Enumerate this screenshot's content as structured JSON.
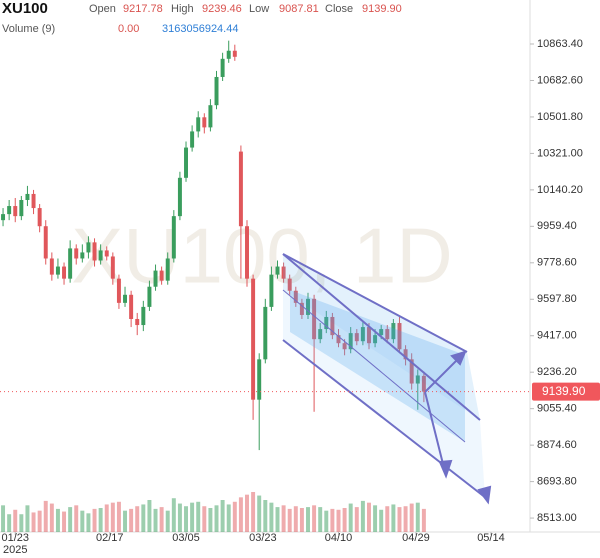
{
  "chart_data": {
    "type": "candlestick",
    "symbol": "XU100",
    "watermark": "XU100, 1D",
    "ohlc_legend": [
      {
        "name": "Open",
        "value": "9217.78"
      },
      {
        "name": "High",
        "value": "9239.46"
      },
      {
        "name": "Low",
        "value": "9087.81"
      },
      {
        "name": "Close",
        "value": "9139.90"
      }
    ],
    "volume_legend": {
      "name": "Volume (9)",
      "values": [
        "0.00",
        "3163056924.44"
      ]
    },
    "up_color": "#3a9d5d",
    "down_color": "#e0575b",
    "open": [
      9990,
      10020,
      10060,
      10010,
      10090,
      10120,
      10050,
      9960,
      9800,
      9720,
      9760,
      9700,
      9850,
      9800,
      9830,
      9880,
      9790,
      9840,
      9810,
      9700,
      9580,
      9620,
      9500,
      9470,
      9560,
      9660,
      9740,
      9690,
      9800,
      10010,
      10200,
      10350,
      10430,
      10500,
      10450,
      10560,
      10700,
      10790,
      10830,
      10330,
      9960,
      9700,
      9100,
      9300,
      9560,
      9720,
      9760,
      9700,
      9640,
      9580,
      9520,
      9600,
      9400,
      9450,
      9510,
      9420,
      9380,
      9350,
      9430,
      9390,
      9460,
      9380,
      9420,
      9450,
      9400,
      9480,
      9350,
      9300,
      9180,
      9217.78
    ],
    "high": [
      10050,
      10090,
      10100,
      10110,
      10160,
      10140,
      10070,
      9990,
      9830,
      9800,
      9780,
      9890,
      9870,
      9870,
      9910,
      9900,
      9870,
      9860,
      9830,
      9720,
      9660,
      9640,
      9530,
      9590,
      9690,
      9770,
      9760,
      9830,
      10040,
      10230,
      10380,
      10460,
      10530,
      10520,
      10590,
      10730,
      10820,
      10880,
      10860,
      10360,
      9990,
      9720,
      9330,
      9600,
      9760,
      9790,
      9780,
      9720,
      9660,
      9600,
      9630,
      9620,
      9480,
      9540,
      9530,
      9450,
      9400,
      9460,
      9450,
      9490,
      9480,
      9450,
      9470,
      9470,
      9500,
      9510,
      9370,
      9330,
      9250,
      9239.46
    ],
    "low": [
      9960,
      9990,
      9980,
      9990,
      10060,
      10020,
      9930,
      9770,
      9690,
      9700,
      9670,
      9680,
      9770,
      9780,
      9800,
      9760,
      9770,
      9790,
      9670,
      9550,
      9560,
      9460,
      9420,
      9440,
      9540,
      9640,
      9670,
      9670,
      9780,
      9990,
      10180,
      10330,
      10400,
      10420,
      10430,
      10540,
      10680,
      10770,
      10780,
      9700,
      9660,
      9000,
      8850,
      9280,
      9540,
      9700,
      9680,
      9620,
      9560,
      9500,
      9500,
      9040,
      9380,
      9430,
      9400,
      9360,
      9320,
      9330,
      9370,
      9370,
      9350,
      9360,
      9400,
      9380,
      9380,
      9330,
      9270,
      9150,
      9050,
      9087.81
    ],
    "close": [
      10020,
      10060,
      10010,
      10090,
      10120,
      10050,
      9960,
      9800,
      9720,
      9760,
      9700,
      9850,
      9800,
      9830,
      9880,
      9790,
      9840,
      9810,
      9700,
      9580,
      9620,
      9500,
      9470,
      9560,
      9660,
      9740,
      9690,
      9800,
      10010,
      10200,
      10350,
      10430,
      10500,
      10450,
      10560,
      10700,
      10790,
      10830,
      10800,
      9960,
      9700,
      9100,
      9300,
      9560,
      9720,
      9760,
      9700,
      9640,
      9580,
      9520,
      9600,
      9400,
      9450,
      9510,
      9420,
      9380,
      9350,
      9430,
      9390,
      9460,
      9380,
      9420,
      9450,
      9400,
      9480,
      9350,
      9300,
      9180,
      9220,
      9139.9
    ],
    "volume": [
      3,
      2,
      2.5,
      2,
      3,
      2.2,
      2.4,
      3.5,
      3.2,
      2.6,
      2.3,
      2.8,
      3,
      2.4,
      2.1,
      2.6,
      2.7,
      3.1,
      3.3,
      3.4,
      2.4,
      2.6,
      2.9,
      3.1,
      3.6,
      2.6,
      2.8,
      2.4,
      3.8,
      3.2,
      2.9,
      3.3,
      3.4,
      2.9,
      2.7,
      3,
      3.6,
      3.1,
      3.4,
      3.9,
      4.2,
      4.5,
      4.1,
      3.6,
      3.3,
      2.8,
      3,
      2.6,
      2.9,
      2.7,
      2.8,
      3,
      2.8,
      2.4,
      2.6,
      2.5,
      2.7,
      3.2,
      2.8,
      3.5,
      3.3,
      3,
      2.5,
      2.9,
      3.1,
      2.8,
      2.9,
      3.2,
      3.3,
      2.6
    ],
    "xlim": [
      -0.5,
      86.4
    ],
    "ylim": [
      8443.9,
      11081.6
    ],
    "xticks": [
      {
        "value": 2,
        "label": "01/23"
      },
      {
        "value": 17.5,
        "label": "02/17"
      },
      {
        "value": 30,
        "label": "03/05"
      },
      {
        "value": 42.6,
        "label": "03/23"
      },
      {
        "value": 55,
        "label": "04/10"
      },
      {
        "value": 67.7,
        "label": "04/29"
      },
      {
        "value": 80,
        "label": "05/14"
      }
    ],
    "year_label": "2025",
    "yticks": [
      {
        "value": 10863.4,
        "label": "10863.40"
      },
      {
        "value": 10682.6,
        "label": "10682.60"
      },
      {
        "value": 10501.8,
        "label": "10501.80"
      },
      {
        "value": 10321,
        "label": "10321.00"
      },
      {
        "value": 10140.2,
        "label": "10140.20"
      },
      {
        "value": 9959.4,
        "label": "9959.40"
      },
      {
        "value": 9778.6,
        "label": "9778.60"
      },
      {
        "value": 9597.8,
        "label": "9597.80"
      },
      {
        "value": 9417,
        "label": "9417.00"
      },
      {
        "value": 9236.2,
        "label": "9236.20"
      },
      {
        "value": 9055.4,
        "label": "9055.40"
      },
      {
        "value": 8874.6,
        "label": "8874.60"
      },
      {
        "value": 8693.8,
        "label": "8693.80"
      },
      {
        "value": 8513,
        "label": "8513.00"
      }
    ],
    "last_price": {
      "value": 9139.9,
      "label": "9139.90",
      "color": "#f0575c"
    }
  }
}
